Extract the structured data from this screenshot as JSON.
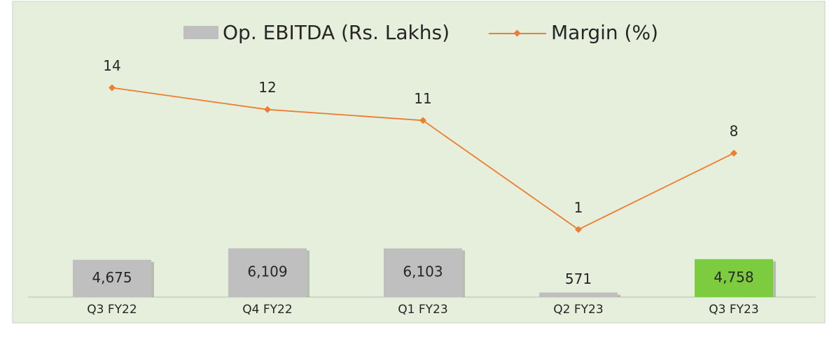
{
  "chart_data": {
    "type": "bar_line",
    "categories": [
      "Q3 FY22",
      "Q4 FY22",
      "Q1 FY23",
      "Q2 FY23",
      "Q3 FY23"
    ],
    "series": [
      {
        "name": "Op. EBITDA (Rs. Lakhs)",
        "type": "bar",
        "color": "#bfbfbf",
        "colors": [
          "#bfbfbf",
          "#bfbfbf",
          "#bfbfbf",
          "#bfbfbf",
          "#7dcc3f"
        ],
        "values": [
          4675,
          6109,
          6103,
          571,
          4758
        ],
        "value_labels": [
          "4,675",
          "6,109",
          "6,103",
          "571",
          "4,758"
        ]
      },
      {
        "name": "Margin (%)",
        "type": "line",
        "axis": "y2",
        "color": "#ed7d31",
        "values": [
          14,
          12,
          11,
          1,
          8
        ]
      }
    ],
    "ylim": [
      0,
      32000
    ],
    "y2lim": [
      -5.2,
      18.2
    ],
    "legend": "top"
  }
}
